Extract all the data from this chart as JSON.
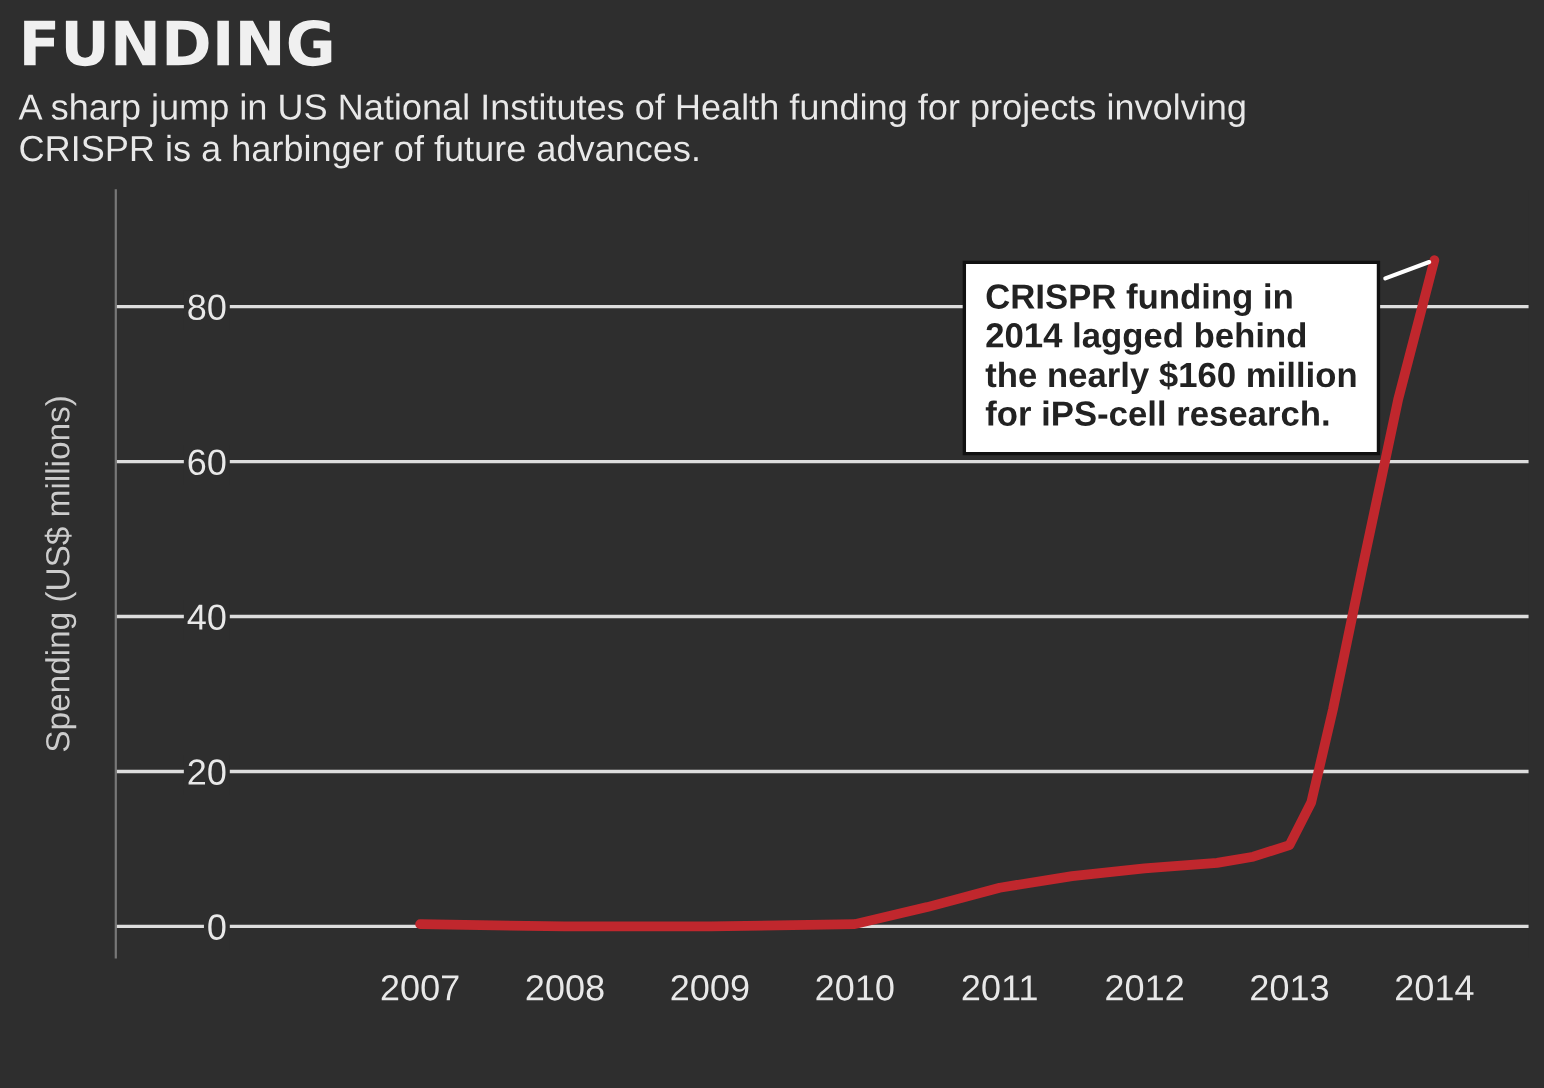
{
  "chart_data": {
    "type": "line",
    "title": "FUNDING",
    "subtitle": "A sharp jump in US National Institutes of Health funding for projects involving\nCRISPR is a harbinger of future advances.",
    "ylabel": "Spending (US$ millions)",
    "x": [
      2007,
      2008,
      2009,
      2010,
      2010.5,
      2011,
      2011.5,
      2012,
      2012.5,
      2012.75,
      2013,
      2013.15,
      2013.3,
      2013.5,
      2013.75,
      2014
    ],
    "series": [
      {
        "color": "#c0272d",
        "values": [
          0.3,
          0,
          0,
          0.3,
          2.5,
          5,
          6.5,
          7.5,
          8.2,
          9,
          10.5,
          16,
          28,
          46,
          68,
          86
        ]
      }
    ],
    "xlim": [
      2004.9,
      2014.65
    ],
    "ylim": [
      -4,
      95
    ],
    "xticks": [
      2007,
      2008,
      2009,
      2010,
      2011,
      2012,
      2013,
      2014
    ],
    "yticks": [
      0,
      20,
      40,
      60,
      80
    ],
    "grid": "y",
    "marker": "none",
    "line_style": "solid",
    "annotations": [
      {
        "text": "CRISPR funding in\n2014 lagged behind\nthe nearly $160 million\nfor iPS-cell research.",
        "x": 2014,
        "y": 86
      }
    ]
  }
}
